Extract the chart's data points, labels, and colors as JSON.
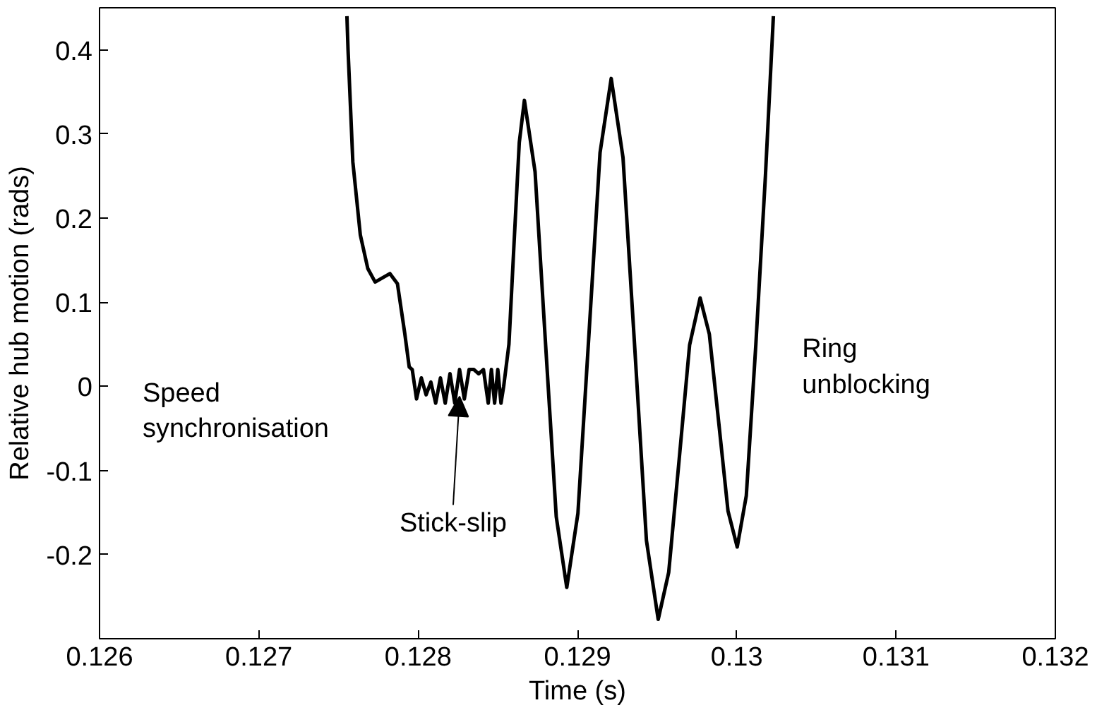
{
  "chart_data": {
    "type": "line",
    "xlabel": "Time (s)",
    "ylabel": "Relative hub motion (rads)",
    "xlim": [
      0.126,
      0.132
    ],
    "ylim": [
      -0.3,
      0.45
    ],
    "xticks": [
      0.126,
      0.127,
      0.128,
      0.129,
      0.13,
      0.131,
      0.132
    ],
    "yticks": [
      -0.2,
      -0.1,
      0,
      0.1,
      0.2,
      0.3,
      0.4
    ],
    "grid": false,
    "marker": "none",
    "line_style": "solid",
    "annotations": [
      "Speed synchronisation",
      {
        "text": "Stick-slip",
        "x": 0.12826,
        "y": -0.006
      },
      "Ring unblocking"
    ],
    "series": [
      {
        "color": "#000000",
        "x": [
          0.127553,
          0.12756,
          0.12759,
          0.127637,
          0.127684,
          0.12773,
          0.127823,
          0.12787,
          0.127916,
          0.127944,
          0.127963,
          0.12799,
          0.12802,
          0.12805,
          0.12808,
          0.12811,
          0.12814,
          0.12817,
          0.1282,
          0.12823,
          0.12826,
          0.12829,
          0.12832,
          0.12835,
          0.12838,
          0.12841,
          0.12844,
          0.12846,
          0.12848,
          0.1285,
          0.12852,
          0.128537,
          0.12857,
          0.128602,
          0.128635,
          0.128667,
          0.128734,
          0.1288,
          0.128867,
          0.128933,
          0.129003,
          0.129073,
          0.129142,
          0.129212,
          0.129286,
          0.12936,
          0.129433,
          0.129507,
          0.129573,
          0.129639,
          0.129704,
          0.12977,
          0.129828,
          0.129887,
          0.129945,
          0.130003,
          0.13006,
          0.13012,
          0.13018,
          0.13023
        ],
        "values": [
          0.44,
          0.4,
          0.267,
          0.18,
          0.14,
          0.124,
          0.134,
          0.122,
          0.063,
          0.023,
          0.02,
          -0.015,
          0.01,
          -0.01,
          0.005,
          -0.02,
          0.01,
          -0.02,
          0.015,
          -0.02,
          0.02,
          -0.015,
          0.02,
          0.02,
          0.015,
          0.02,
          -0.02,
          0.02,
          -0.02,
          0.02,
          -0.02,
          0.0,
          0.05,
          0.17,
          0.29,
          0.34,
          0.255,
          0.05,
          -0.155,
          -0.239,
          -0.151,
          0.064,
          0.278,
          0.366,
          0.272,
          0.045,
          -0.183,
          -0.277,
          -0.221,
          -0.086,
          0.049,
          0.105,
          0.062,
          -0.043,
          -0.148,
          -0.191,
          -0.13,
          0.05,
          0.25,
          0.44
        ]
      }
    ]
  }
}
